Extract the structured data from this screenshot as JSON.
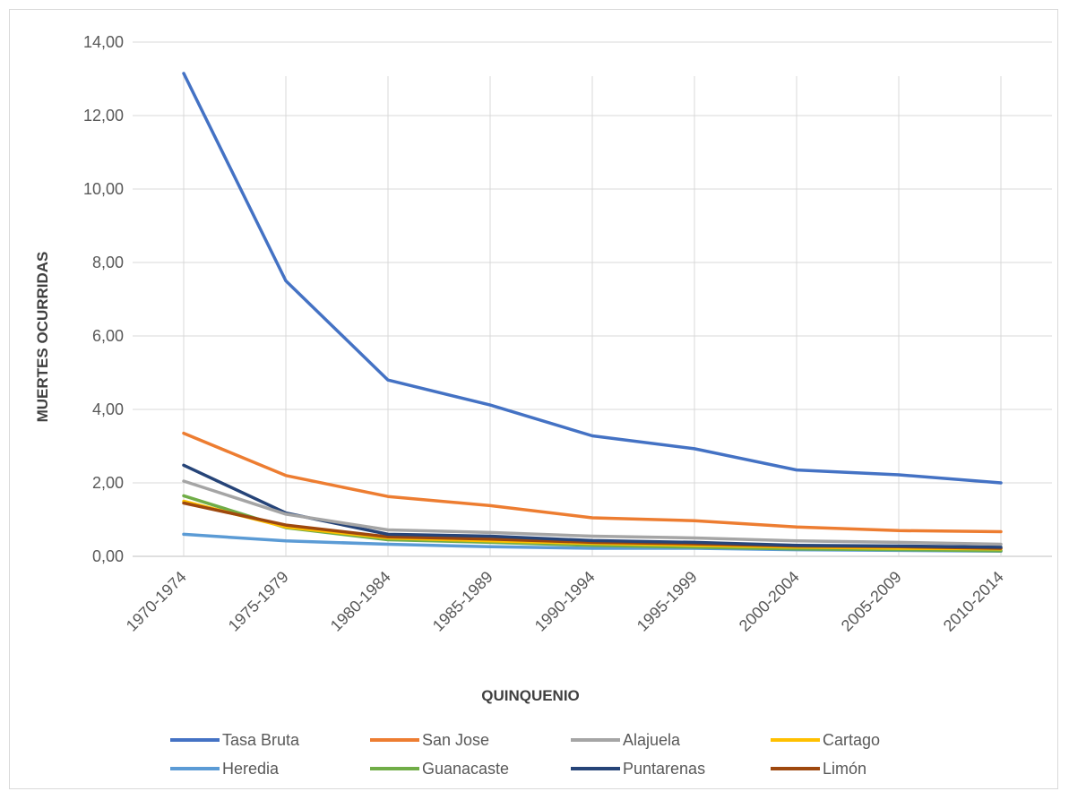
{
  "chart_data": {
    "type": "line",
    "title": "",
    "xlabel": "QUINQUENIO",
    "ylabel": "MUERTES OCURRIDAS",
    "categories": [
      "1970-1974",
      "1975-1979",
      "1980-1984",
      "1985-1989",
      "1990-1994",
      "1995-1999",
      "2000-2004",
      "2005-2009",
      "2010-2014"
    ],
    "ylim": [
      0,
      14
    ],
    "yticks": [
      {
        "value": 0,
        "label": "0,00"
      },
      {
        "value": 2,
        "label": "2,00"
      },
      {
        "value": 4,
        "label": "4,00"
      },
      {
        "value": 6,
        "label": "6,00"
      },
      {
        "value": 8,
        "label": "8,00"
      },
      {
        "value": 10,
        "label": "10,00"
      },
      {
        "value": 12,
        "label": "12,00"
      },
      {
        "value": 14,
        "label": "14,00"
      }
    ],
    "grid": true,
    "legend_position": "bottom",
    "series": [
      {
        "name": "Tasa Bruta",
        "color": "#4472C4",
        "values": [
          13.15,
          7.5,
          4.8,
          4.12,
          3.28,
          2.93,
          2.35,
          2.22,
          2.0
        ]
      },
      {
        "name": "San Jose",
        "color": "#ED7D31",
        "values": [
          3.35,
          2.2,
          1.63,
          1.38,
          1.05,
          0.97,
          0.8,
          0.7,
          0.67
        ]
      },
      {
        "name": "Alajuela",
        "color": "#A5A5A5",
        "values": [
          2.05,
          1.15,
          0.72,
          0.65,
          0.55,
          0.5,
          0.42,
          0.38,
          0.33
        ]
      },
      {
        "name": "Cartago",
        "color": "#FFC000",
        "values": [
          1.5,
          0.8,
          0.5,
          0.42,
          0.35,
          0.3,
          0.25,
          0.22,
          0.2
        ]
      },
      {
        "name": "Heredia",
        "color": "#5B9BD5",
        "values": [
          0.6,
          0.42,
          0.33,
          0.26,
          0.22,
          0.22,
          0.18,
          0.16,
          0.14
        ]
      },
      {
        "name": "Guanacaste",
        "color": "#70AD47",
        "values": [
          1.65,
          0.78,
          0.45,
          0.38,
          0.3,
          0.25,
          0.2,
          0.18,
          0.15
        ]
      },
      {
        "name": "Puntarenas",
        "color": "#264478",
        "values": [
          2.48,
          1.18,
          0.6,
          0.55,
          0.43,
          0.38,
          0.3,
          0.28,
          0.25
        ]
      },
      {
        "name": "Limón",
        "color": "#9E480E",
        "values": [
          1.45,
          0.85,
          0.53,
          0.47,
          0.38,
          0.34,
          0.28,
          0.26,
          0.22
        ]
      }
    ]
  }
}
